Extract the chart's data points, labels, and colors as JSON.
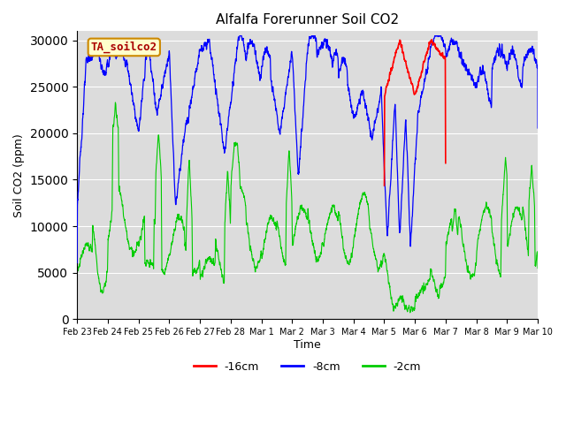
{
  "title": "Alfalfa Forerunner Soil CO2",
  "ylabel": "Soil CO2 (ppm)",
  "xlabel": "Time",
  "legend_label": "TA_soilco2",
  "ylim": [
    0,
    31000
  ],
  "yticks": [
    0,
    5000,
    10000,
    15000,
    20000,
    25000,
    30000
  ],
  "xtick_labels": [
    "Feb 23",
    "Feb 24",
    "Feb 25",
    "Feb 26",
    "Feb 27",
    "Feb 28",
    "Mar 1",
    "Mar 2",
    "Mar 3",
    "Mar 4",
    "Mar 5",
    "Mar 6",
    "Mar 7",
    "Mar 8",
    "Mar 9",
    "Mar 10"
  ],
  "line_colors": {
    "red": "#ff0000",
    "blue": "#0000ff",
    "green": "#00cc00"
  },
  "bg_color": "#dcdcdc",
  "legend_entries": [
    "-16cm",
    "-8cm",
    "-2cm"
  ],
  "legend_colors": [
    "#ff0000",
    "#0000ff",
    "#00cc00"
  ],
  "figsize": [
    6.4,
    4.8
  ],
  "dpi": 100
}
